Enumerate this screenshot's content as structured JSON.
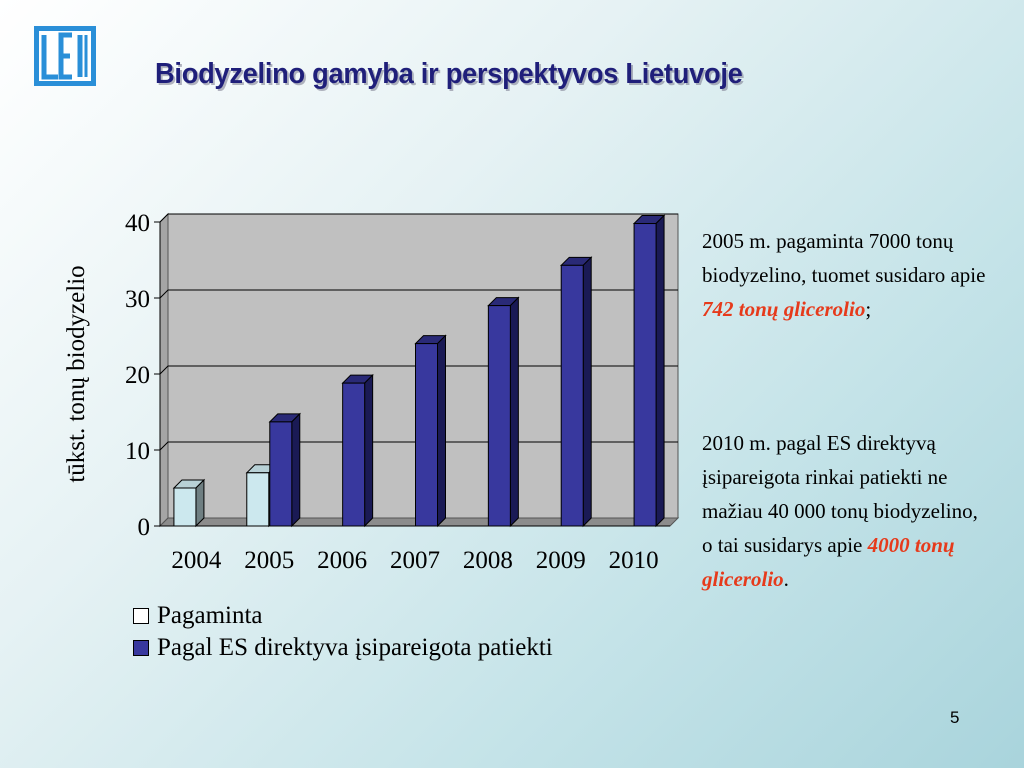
{
  "title": "Biodyzelino gamyba ir perspektyvos Lietuvoje",
  "page_number": "5",
  "colors": {
    "series_produced": "#cce8ee",
    "series_required": "#38389e",
    "title": "#1f1f7a",
    "highlight": "#e63a1b",
    "logo": "#2a8fd8"
  },
  "chart_data": {
    "type": "bar",
    "categories": [
      "2004",
      "2005",
      "2006",
      "2007",
      "2008",
      "2009",
      "2010"
    ],
    "series": [
      {
        "name": "Pagaminta",
        "values": [
          5,
          7,
          null,
          null,
          null,
          null,
          null
        ]
      },
      {
        "name": "Pagal ES direktyva įsipareigota patiekti",
        "values": [
          null,
          13.7,
          18.8,
          24,
          29,
          34.3,
          39.8
        ]
      }
    ],
    "ylabel": "tūkst. tonų biodyzelio",
    "ylim": [
      0,
      40
    ],
    "yticks": [
      "0",
      "10",
      "20",
      "30",
      "40"
    ],
    "grid": true,
    "legend_position": "bottom-left"
  },
  "notes": {
    "note1": {
      "text": "2005 m. pagaminta 7000 tonų biodyzelino, tuomet susidaro apie ",
      "highlight": "742 tonų glicerolio",
      "suffix": ";"
    },
    "note2": {
      "text": "2010 m. pagal ES direktyvą įsipareigota rinkai patiekti ne mažiau 40 000 tonų biodyzelino, o tai susidarys apie ",
      "highlight": "4000 tonų glicerolio",
      "suffix": "."
    }
  }
}
